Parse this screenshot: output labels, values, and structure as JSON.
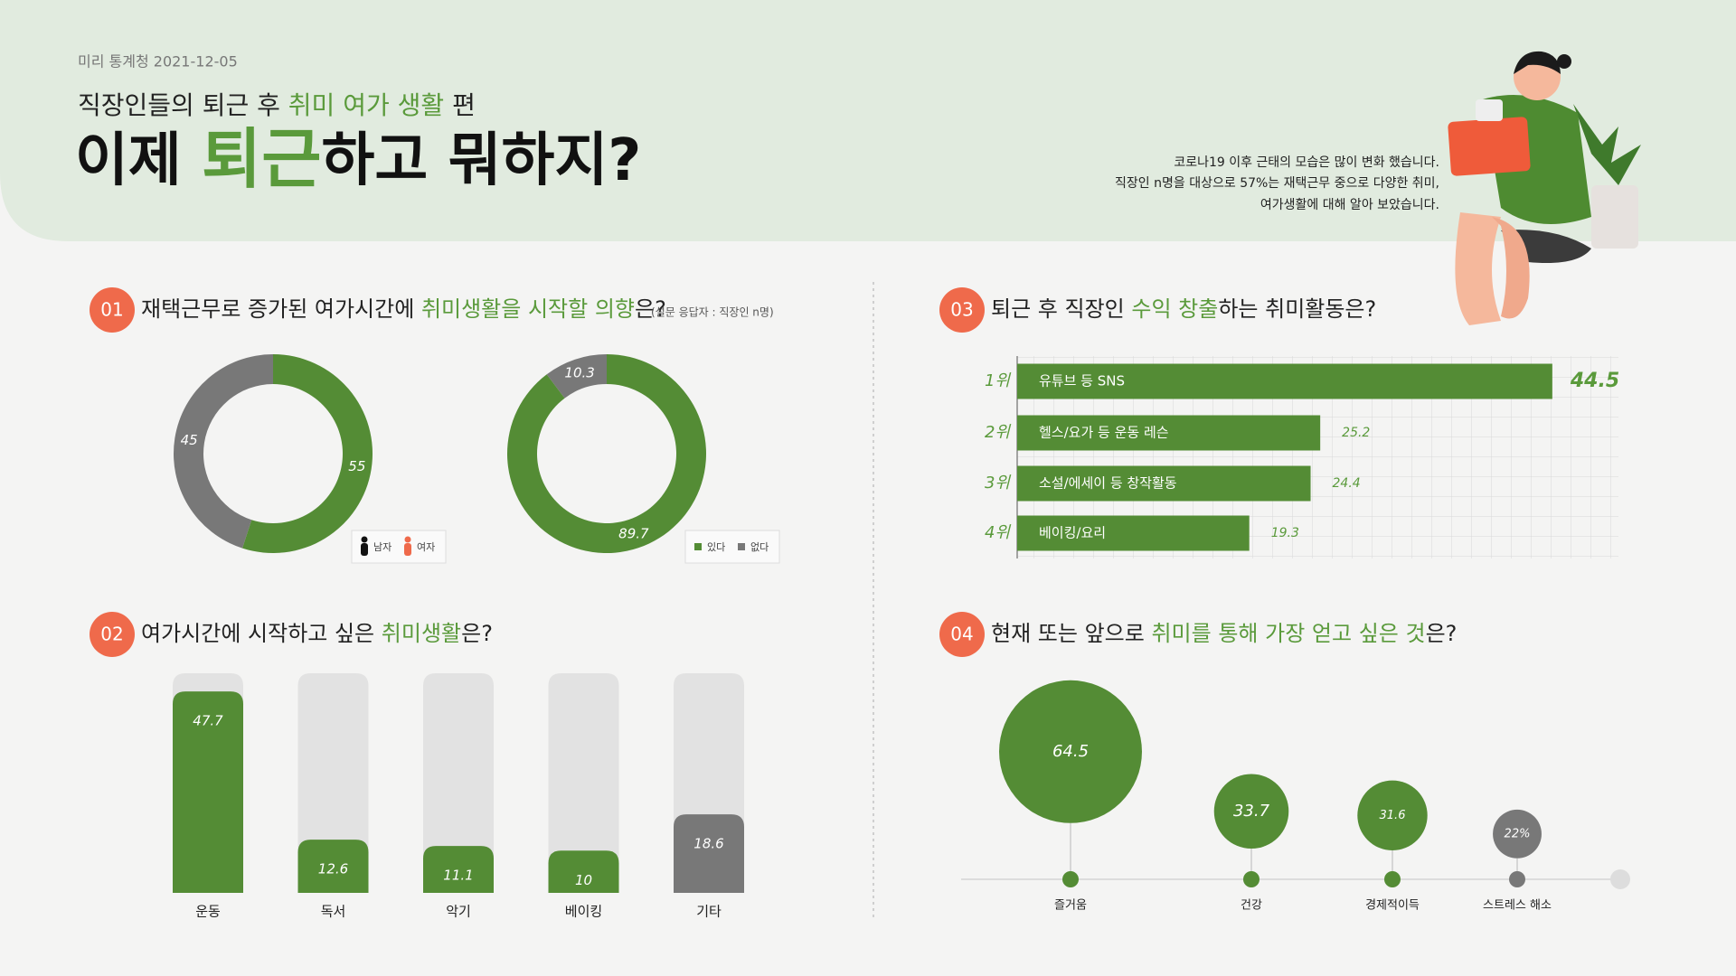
{
  "header": {
    "source": "미리 통계청 2021-12-05",
    "subtitle": [
      "직장인들의 퇴근 후 ",
      "취미 여가 생활",
      " 편"
    ],
    "title": [
      "이제 ",
      "퇴근",
      "하고 뭐하지?"
    ],
    "description": [
      "코로나19 이후 근태의 모습은 많이 변화 했습니다.",
      "직장인 n명을 대상으로 57%는 재택근무 중으로 다양한 취미,",
      "여가생활에 대해 알아 보았습니다."
    ]
  },
  "sections": [
    {
      "number": "01",
      "title": [
        "재택근무로 증가된 여가시간에 ",
        "취미생활을 시작할 의향",
        "은?"
      ],
      "note": "(설문 응답자 : 직장인 n명)"
    },
    {
      "number": "02",
      "title": [
        "여가시간에 시작하고 싶은 ",
        "취미생활",
        "은?"
      ]
    },
    {
      "number": "03",
      "title": [
        "퇴근 후 직장인 ",
        "수익 창출",
        "하는 취미활동은?"
      ]
    },
    {
      "number": "04",
      "title": [
        "현재 또는 앞으로 ",
        "취미를 통해 가장 얻고 싶은 것",
        "은?"
      ]
    }
  ],
  "chart_data": [
    {
      "type": "donut",
      "categories": [
        "남자",
        "여자"
      ],
      "values": [
        55,
        45
      ],
      "colors": [
        "#548c35",
        "#787878"
      ],
      "legend_colors": [
        "#111111",
        "#ef6a4b"
      ]
    },
    {
      "type": "donut",
      "categories": [
        "있다",
        "없다"
      ],
      "values": [
        89.7,
        10.3
      ],
      "colors": [
        "#548c35",
        "#787878"
      ]
    },
    {
      "type": "bar",
      "categories": [
        "운동",
        "독서",
        "악기",
        "베이킹",
        "기타"
      ],
      "values": [
        47.7,
        12.6,
        11.1,
        10,
        18.6
      ],
      "colors": [
        "#548c35",
        "#548c35",
        "#548c35",
        "#548c35",
        "#787878"
      ],
      "ylim": [
        0,
        52
      ]
    },
    {
      "type": "hbar",
      "ranks": [
        "1위",
        "2위",
        "3위",
        "4위"
      ],
      "categories": [
        "유튜브 등 SNS",
        "헬스/요가 등 운동 레슨",
        "소설/에세이 등 창작활동",
        "베이킹/요리"
      ],
      "values": [
        44.5,
        25.2,
        24.4,
        19.3
      ],
      "color": "#548c35",
      "xlim": [
        0,
        50
      ],
      "grid": true
    },
    {
      "type": "bubble",
      "categories": [
        "즐거움",
        "건강",
        "경제적이득",
        "스트레스 해소"
      ],
      "values": [
        64.5,
        33.7,
        31.6,
        22
      ],
      "value_labels": [
        "64.5",
        "33.7",
        "31.6",
        "22%"
      ],
      "colors": [
        "#548c35",
        "#548c35",
        "#548c35",
        "#787878"
      ]
    }
  ]
}
